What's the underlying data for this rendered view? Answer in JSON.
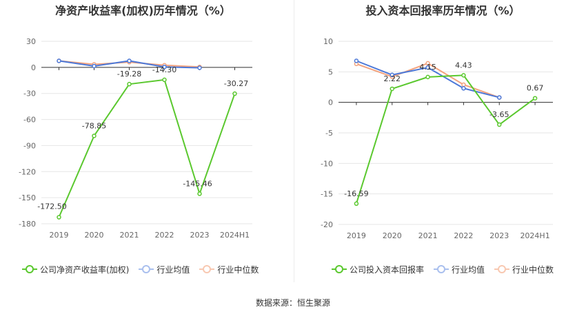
{
  "colors": {
    "company": "#5ac82e",
    "industry_avg": "#4c78d8",
    "industry_median": "#f3a27d",
    "grid": "#e6e6e6",
    "axis": "#333333",
    "tick_text": "#666666"
  },
  "source_text": "数据来源：恒生聚源",
  "chart_data": [
    {
      "type": "line",
      "title": "净资产收益率(加权)历年情况（%）",
      "categories": [
        "2019",
        "2020",
        "2021",
        "2022",
        "2023",
        "2024H1"
      ],
      "ylim": [
        -180,
        30
      ],
      "yticks": [
        30,
        0,
        -30,
        -60,
        -90,
        -120,
        -150,
        -180
      ],
      "series": [
        {
          "name": "公司净资产收益率(加权)",
          "key": "company",
          "values": [
            -172.5,
            -78.85,
            -19.28,
            -14.3,
            -145.46,
            -30.27
          ],
          "labels": [
            "-172.50",
            "-78.85",
            "-19.28",
            "-14.30",
            "-145.46",
            "-30.27"
          ]
        },
        {
          "name": "行业均值",
          "key": "industry_avg",
          "values": [
            7.5,
            1.5,
            7.5,
            0.5,
            -0.5,
            null
          ]
        },
        {
          "name": "行业中位数",
          "key": "industry_median",
          "values": [
            7.5,
            3.5,
            6.0,
            2.5,
            0.5,
            null
          ]
        }
      ]
    },
    {
      "type": "line",
      "title": "投入资本回报率历年情况（%）",
      "categories": [
        "2019",
        "2020",
        "2021",
        "2022",
        "2023",
        "2024H1"
      ],
      "ylim": [
        -20,
        10
      ],
      "yticks": [
        10,
        5,
        0,
        -5,
        -10,
        -15,
        -20
      ],
      "series": [
        {
          "name": "公司投入资本回报率",
          "key": "company",
          "values": [
            -16.59,
            2.22,
            4.15,
            4.43,
            -3.65,
            0.67
          ],
          "labels": [
            "-16.59",
            "2.22",
            "4.15",
            "4.43",
            "-3.65",
            "0.67"
          ]
        },
        {
          "name": "行业均值",
          "key": "industry_avg",
          "values": [
            6.8,
            4.5,
            5.7,
            2.3,
            0.8,
            null
          ]
        },
        {
          "name": "行业中位数",
          "key": "industry_median",
          "values": [
            6.3,
            4.2,
            6.4,
            2.9,
            0.8,
            null
          ]
        }
      ]
    }
  ]
}
